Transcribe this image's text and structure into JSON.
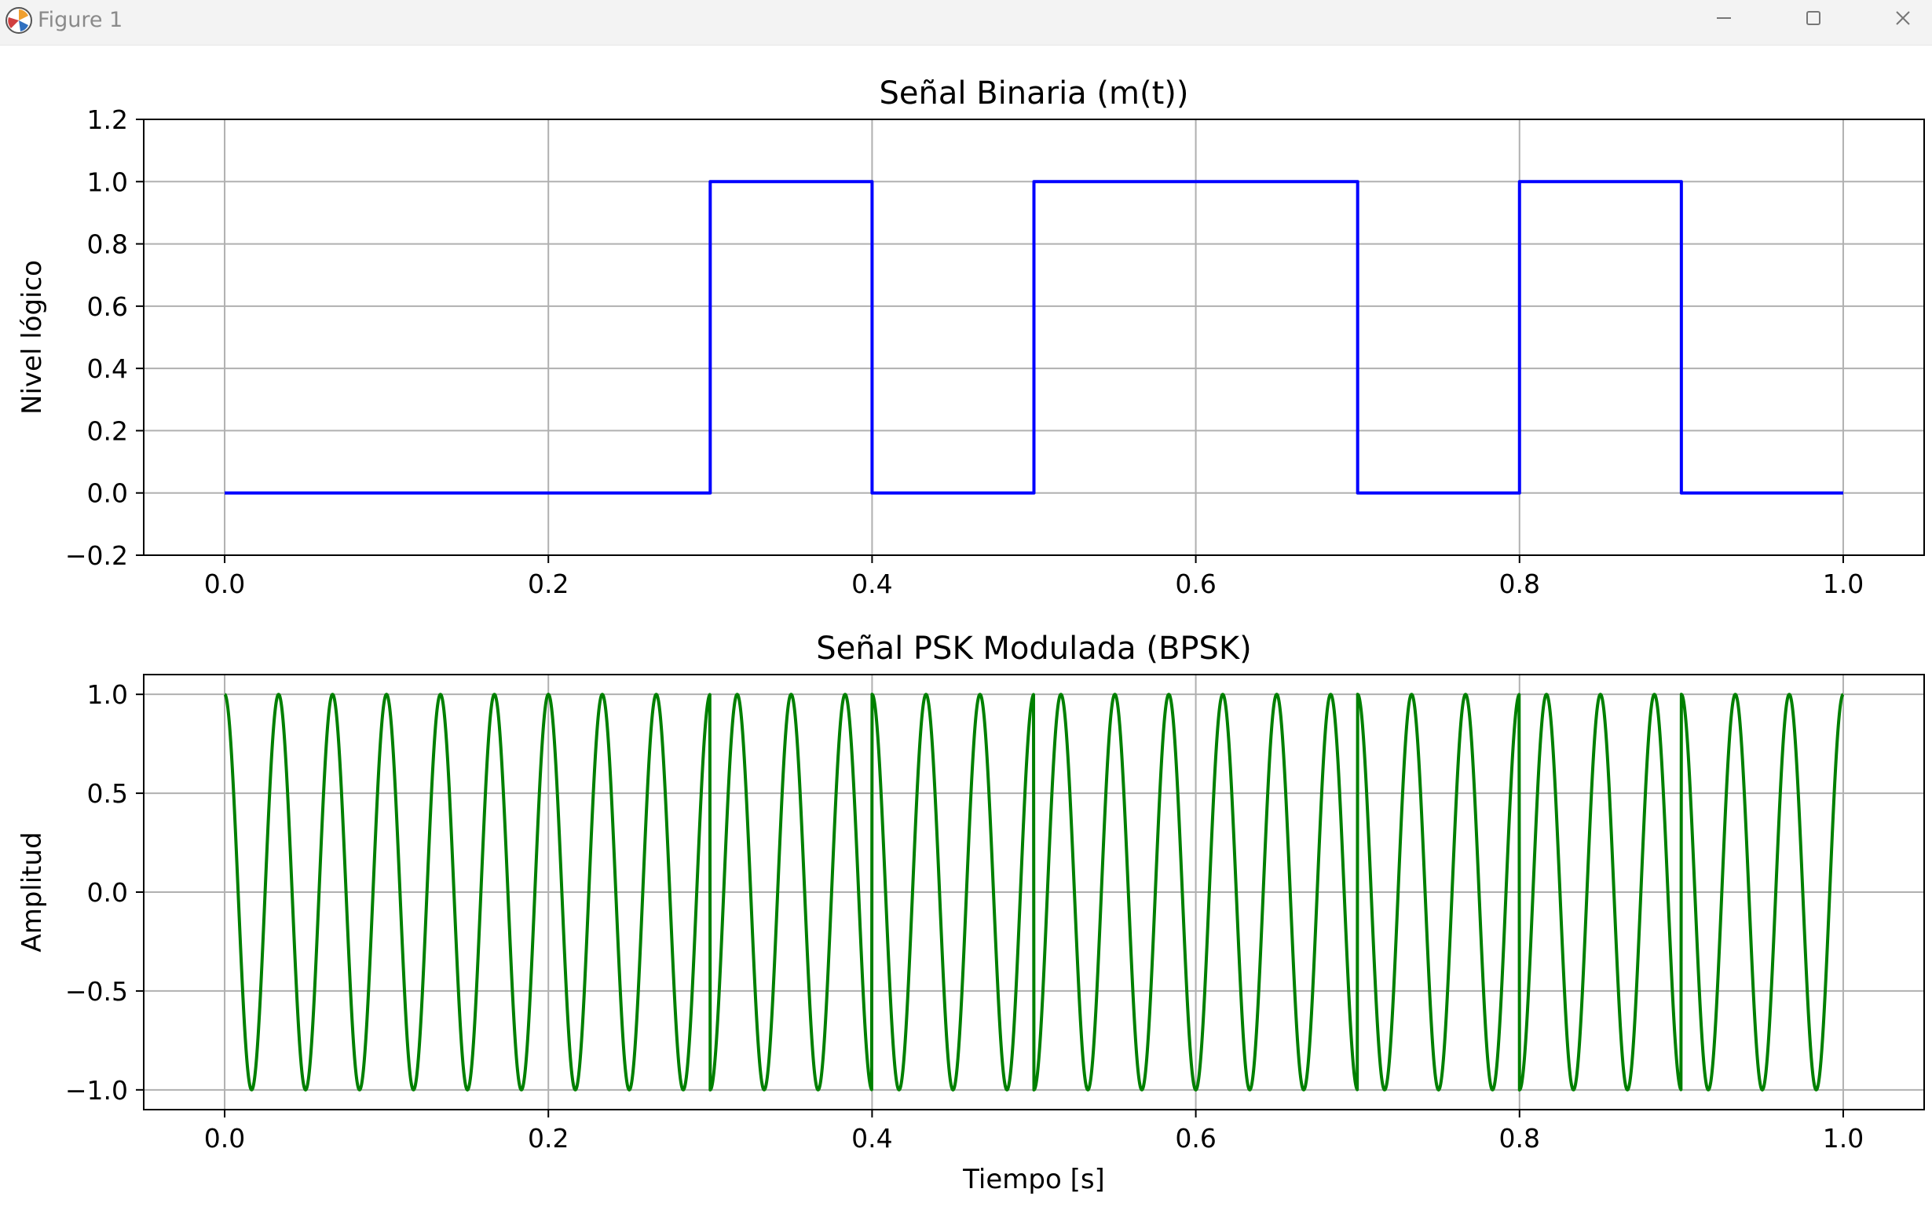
{
  "window": {
    "title": "Figure 1",
    "buttons": {
      "minimize_icon": "minimize-icon",
      "maximize_icon": "maximize-icon",
      "close_icon": "close-icon"
    }
  },
  "chart_data": [
    {
      "type": "line",
      "title": "Señal Binaria (m(t))",
      "xlabel": "",
      "ylabel": "Nivel lógico",
      "xlim": [
        -0.05,
        1.05
      ],
      "ylim": [
        -0.2,
        1.2
      ],
      "xticks": [
        0.0,
        0.2,
        0.4,
        0.6,
        0.8,
        1.0
      ],
      "xtick_labels": [
        "0.0",
        "0.2",
        "0.4",
        "0.6",
        "0.8",
        "1.0"
      ],
      "yticks": [
        -0.2,
        0.0,
        0.2,
        0.4,
        0.6,
        0.8,
        1.0,
        1.2
      ],
      "ytick_labels": [
        "−0.2",
        "0.0",
        "0.2",
        "0.4",
        "0.6",
        "0.8",
        "1.0",
        "1.2"
      ],
      "grid": true,
      "color": "#0000ff",
      "step": true,
      "bit_duration": 0.1,
      "bits": [
        0,
        0,
        0,
        1,
        0,
        1,
        1,
        0,
        1,
        0
      ]
    },
    {
      "type": "line",
      "title": "Señal PSK Modulada (BPSK)",
      "xlabel": "Tiempo [s]",
      "ylabel": "Amplitud",
      "xlim": [
        -0.05,
        1.05
      ],
      "ylim": [
        -1.1,
        1.1
      ],
      "xticks": [
        0.0,
        0.2,
        0.4,
        0.6,
        0.8,
        1.0
      ],
      "xtick_labels": [
        "0.0",
        "0.2",
        "0.4",
        "0.6",
        "0.8",
        "1.0"
      ],
      "yticks": [
        -1.0,
        -0.5,
        0.0,
        0.5,
        1.0
      ],
      "ytick_labels": [
        "−1.0",
        "−0.5",
        "0.0",
        "0.5",
        "1.0"
      ],
      "grid": true,
      "color": "#008000",
      "carrier_frequency_hz": 30,
      "x_range": [
        0.0,
        1.0
      ],
      "formula": "cos(2π·fc·t + π·m(t))"
    }
  ]
}
